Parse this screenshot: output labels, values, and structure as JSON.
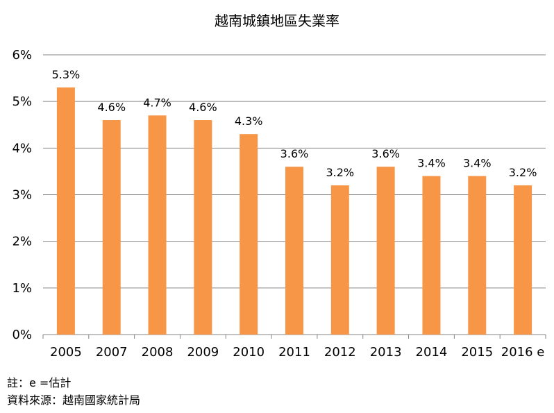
{
  "chart_data": {
    "type": "bar",
    "title": "越南城鎮地區失業率",
    "categories": [
      "2005",
      "2007",
      "2008",
      "2009",
      "2010",
      "2011",
      "2012",
      "2013",
      "2014",
      "2015",
      "2016 e"
    ],
    "values": [
      5.3,
      4.6,
      4.7,
      4.6,
      4.3,
      3.6,
      3.2,
      3.6,
      3.4,
      3.4,
      3.2
    ],
    "data_labels": [
      "5.3%",
      "4.6%",
      "4.7%",
      "4.6%",
      "4.3%",
      "3.6%",
      "3.2%",
      "3.6%",
      "3.4%",
      "3.4%",
      "3.2%"
    ],
    "yticks": [
      "0%",
      "1%",
      "2%",
      "3%",
      "4%",
      "5%",
      "6%"
    ],
    "ylim": [
      0,
      6
    ],
    "xlabel": "",
    "ylabel": "",
    "grid": true,
    "bar_color": "#F79646",
    "grid_color": "#868686"
  },
  "notes": {
    "line1": "註：e =估計",
    "line2": "資料來源：越南國家統計局"
  }
}
